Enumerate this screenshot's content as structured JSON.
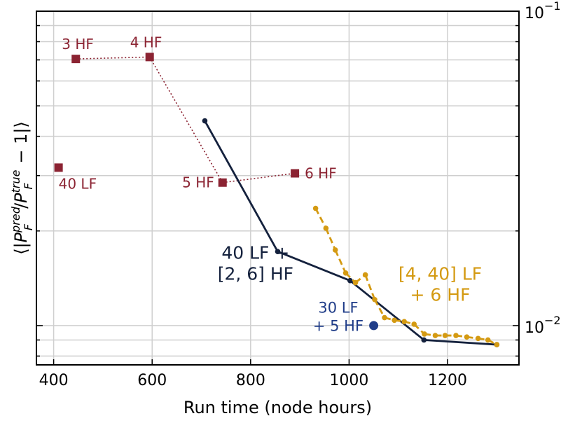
{
  "chart_data": {
    "type": "line",
    "xlabel": "Run time (node hours)",
    "ylabel": "⟨|P_F^pred / P_F^true − 1|⟩",
    "xlim": [
      365,
      1345
    ],
    "ylim": [
      0.0075,
      0.1
    ],
    "yscale": "log",
    "y_axis_side": "right",
    "grid": true,
    "x_ticks": [
      400,
      600,
      800,
      1000,
      1200
    ],
    "x_tick_labels": [
      "400",
      "600",
      "800",
      "1000",
      "1200"
    ],
    "y_major_ticks": [
      0.01,
      0.1
    ],
    "y_major_tick_labels": [
      "10",
      "10"
    ],
    "y_major_tick_exponents": [
      "−2",
      "−1"
    ],
    "colors": {
      "single_fidelity": "#8b2332",
      "mf_2_6": "#14213d",
      "mf_4_40": "#d49a12",
      "point_30lf": "#1f3c88"
    },
    "series": [
      {
        "key": "single_fidelity",
        "color": "#8b2332",
        "marker": "square",
        "line": "dotted",
        "points": [
          {
            "x": 445,
            "y": 0.0705,
            "label": "3 HF",
            "label_dx": -20,
            "label_dy": -14,
            "anchor": "start"
          },
          {
            "x": 595,
            "y": 0.0715,
            "label": "4 HF",
            "label_dx": -28,
            "label_dy": -14,
            "anchor": "start"
          },
          {
            "x": 743,
            "y": 0.0285,
            "label": "5 HF",
            "label_dx": -12,
            "label_dy": 7,
            "anchor": "end"
          },
          {
            "x": 890,
            "y": 0.0305,
            "label": "6 HF",
            "label_dx": 14,
            "label_dy": 7,
            "anchor": "start"
          }
        ],
        "connect": [
          [
            0,
            1
          ],
          [
            1,
            2
          ],
          [
            2,
            3
          ]
        ]
      },
      {
        "key": "single_40lf",
        "color": "#8b2332",
        "marker": "square",
        "line": "none",
        "points": [
          {
            "x": 410,
            "y": 0.0318,
            "label": "40 LF",
            "label_dx": 0,
            "label_dy": 30,
            "anchor": "start"
          }
        ],
        "connect": []
      },
      {
        "key": "mf_2_6",
        "color": "#14213d",
        "marker": "circle",
        "line": "solid",
        "points": [
          {
            "x": 707,
            "y": 0.0448
          },
          {
            "x": 855,
            "y": 0.0172
          },
          {
            "x": 1002,
            "y": 0.0139
          },
          {
            "x": 1152,
            "y": 0.009
          },
          {
            "x": 1300,
            "y": 0.0087
          }
        ],
        "connect": "sequential"
      },
      {
        "key": "mf_4_40",
        "color": "#d49a12",
        "marker": "circle",
        "line": "dashed",
        "points": [
          {
            "x": 932,
            "y": 0.0236
          },
          {
            "x": 953,
            "y": 0.0204
          },
          {
            "x": 972,
            "y": 0.0174
          },
          {
            "x": 993,
            "y": 0.0147
          },
          {
            "x": 1013,
            "y": 0.0137
          },
          {
            "x": 1033,
            "y": 0.0145
          },
          {
            "x": 1052,
            "y": 0.0121
          },
          {
            "x": 1072,
            "y": 0.0106
          },
          {
            "x": 1092,
            "y": 0.0104
          },
          {
            "x": 1112,
            "y": 0.0103
          },
          {
            "x": 1132,
            "y": 0.0101
          },
          {
            "x": 1153,
            "y": 0.0094
          },
          {
            "x": 1175,
            "y": 0.0093
          },
          {
            "x": 1195,
            "y": 0.0093
          },
          {
            "x": 1217,
            "y": 0.0093
          },
          {
            "x": 1239,
            "y": 0.0092
          },
          {
            "x": 1262,
            "y": 0.0091
          },
          {
            "x": 1282,
            "y": 0.009
          },
          {
            "x": 1300,
            "y": 0.0087
          }
        ],
        "connect": "sequential"
      },
      {
        "key": "point_30lf",
        "color": "#1f3c88",
        "marker": "circle-large",
        "line": "none",
        "points": [
          {
            "x": 1050,
            "y": 0.01
          }
        ],
        "connect": []
      }
    ],
    "annotations": [
      {
        "lines": [
          "40 LF +",
          "[2, 6] HF"
        ],
        "x": 810,
        "y": 0.0163,
        "color": "#14213d",
        "size": 25,
        "line_gap": 30
      },
      {
        "lines": [
          "[4, 40] LF",
          "+ 6 HF"
        ],
        "x": 1185,
        "y": 0.014,
        "color": "#d49a12",
        "size": 25,
        "line_gap": 30
      },
      {
        "lines": [
          "30 LF",
          "+ 5 HF"
        ],
        "x": 978,
        "y": 0.011,
        "color": "#1f3c88",
        "size": 21,
        "line_gap": 26,
        "anchor": "middle"
      }
    ]
  }
}
